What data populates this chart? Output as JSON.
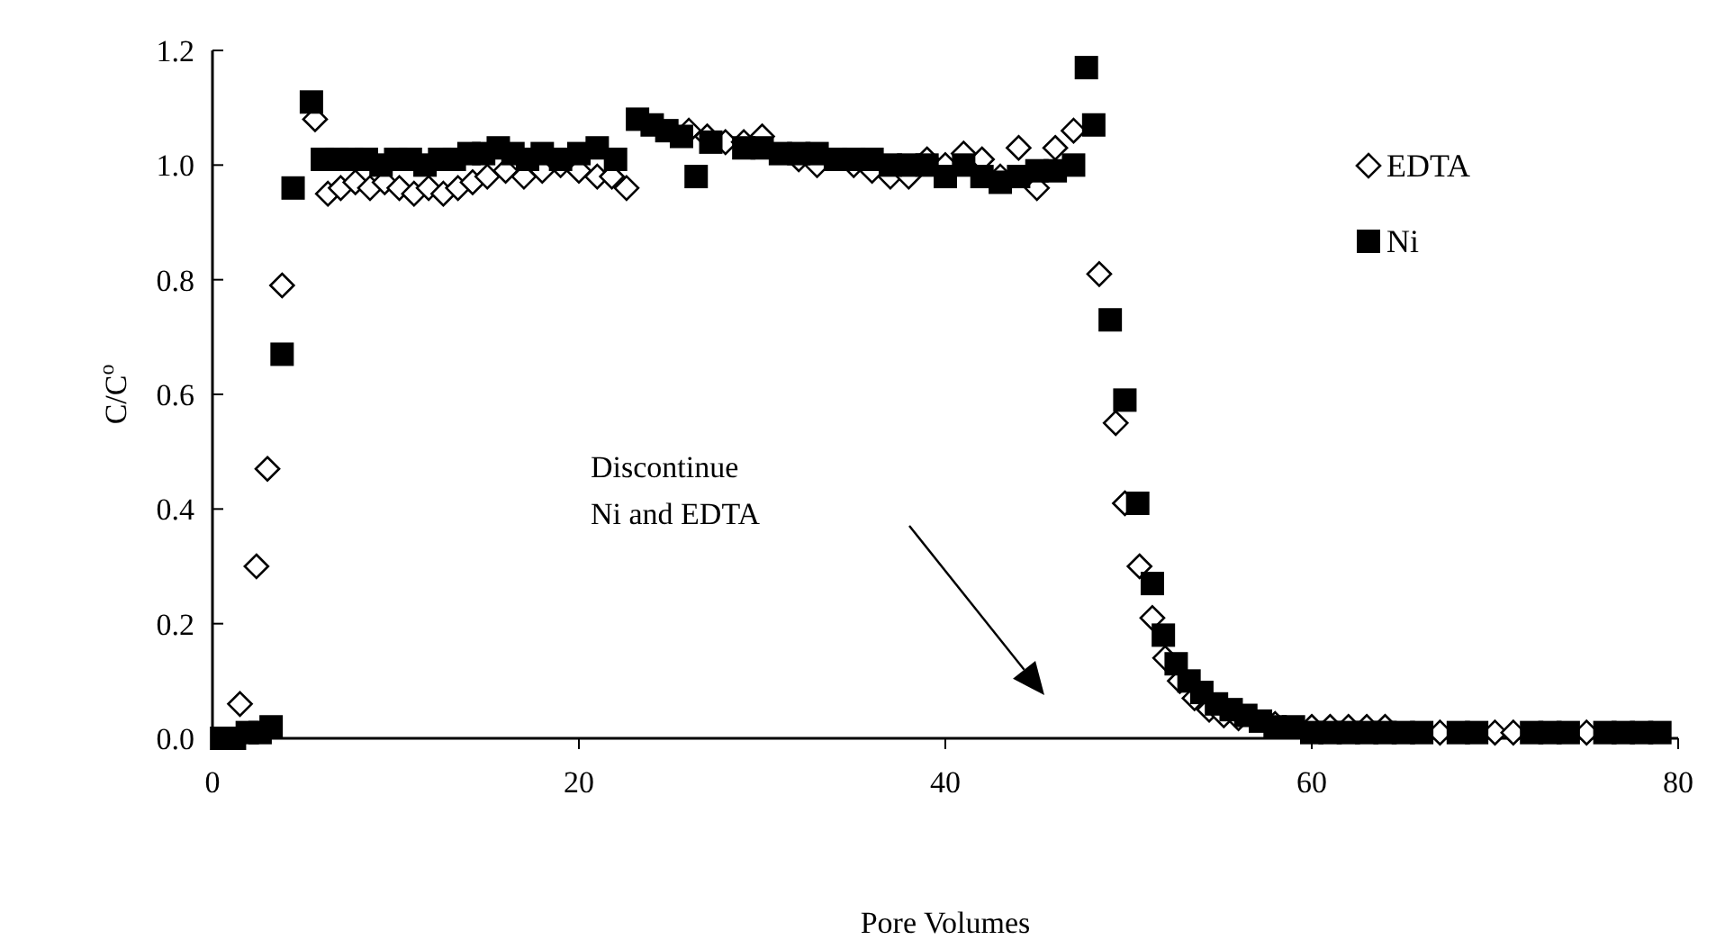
{
  "chart_data": {
    "type": "scatter",
    "xlabel": "Pore Volumes",
    "ylabel": "C/C$^{o}$",
    "xlim": [
      0,
      80
    ],
    "xticks": [
      0,
      20,
      40,
      60,
      80
    ],
    "ylim": [
      0,
      1.2
    ],
    "yticks": [
      {
        "value": 0,
        "label": "0.0"
      },
      {
        "value": 0.2,
        "label": "0.2"
      },
      {
        "value": 0.4,
        "label": "0.4"
      },
      {
        "value": 0.6,
        "label": "0.6"
      },
      {
        "value": 0.8,
        "label": "0.8"
      },
      {
        "value": 1,
        "label": "1.0"
      },
      {
        "value": 1.2,
        "label": "1.2"
      }
    ],
    "legend": "top right",
    "grid": false,
    "annotations": [
      "Discontinue\nNi and EDTA"
    ],
    "series": [
      {
        "name": "EDTA",
        "color": "#000000",
        "marker": "diamond",
        "x": [
          1.5,
          2.4,
          3.0,
          3.8,
          5.6,
          6.3,
          7.0,
          7.8,
          8.6,
          9.4,
          10.2,
          11.0,
          11.8,
          12.6,
          13.4,
          14.2,
          15.0,
          16.0,
          17.0,
          18.0,
          19.0,
          20.0,
          21.0,
          21.8,
          22.6,
          26.0,
          27.0,
          28.0,
          29.0,
          30.0,
          32.0,
          33.0,
          35.0,
          36.0,
          37.0,
          38.0,
          39.0,
          40.0,
          41.0,
          42.0,
          43.0,
          44.0,
          45.0,
          46.0,
          47.0,
          48.4,
          49.3,
          49.8,
          50.6,
          51.3,
          52.0,
          52.8,
          53.6,
          54.4,
          55.2,
          56,
          58,
          60,
          61,
          62,
          63,
          64,
          67,
          70,
          71,
          75
        ],
        "values": [
          0.06,
          0.3,
          0.47,
          0.79,
          1.08,
          0.95,
          0.96,
          0.97,
          0.96,
          0.97,
          0.96,
          0.95,
          0.96,
          0.95,
          0.96,
          0.97,
          0.98,
          0.99,
          0.98,
          0.99,
          1.0,
          0.99,
          0.98,
          0.98,
          0.96,
          1.06,
          1.05,
          1.04,
          1.04,
          1.05,
          1.01,
          1.0,
          1.0,
          0.99,
          0.98,
          0.98,
          1.01,
          1.0,
          1.02,
          1.01,
          0.98,
          1.03,
          0.96,
          1.03,
          1.06,
          0.81,
          0.55,
          0.41,
          0.3,
          0.21,
          0.14,
          0.1,
          0.07,
          0.05,
          0.04,
          0.035,
          0.025,
          0.02,
          0.02,
          0.02,
          0.02,
          0.02,
          0.01,
          0.01,
          0.01,
          0.01
        ]
      },
      {
        "name": "Ni",
        "color": "#000000",
        "marker": "square",
        "x": [
          0.5,
          1.2,
          1.9,
          2.6,
          3.2,
          3.8,
          4.4,
          5.4,
          6.0,
          6.8,
          7.6,
          8.4,
          9.2,
          10.0,
          10.8,
          11.6,
          12.4,
          13.2,
          14.0,
          14.8,
          15.6,
          16.4,
          17.2,
          18.0,
          19.0,
          20.0,
          21.0,
          22.0,
          23.2,
          24.0,
          24.8,
          25.6,
          26.4,
          27.2,
          29,
          30,
          31,
          32,
          33,
          34,
          35,
          36,
          37,
          38,
          39,
          40,
          41,
          42,
          43,
          44,
          45,
          46,
          47,
          47.7,
          48.1,
          49.0,
          49.8,
          50.5,
          51.3,
          51.9,
          52.6,
          53.3,
          54,
          54.8,
          55.6,
          56.4,
          57.2,
          58,
          59,
          60,
          61,
          62,
          63,
          64,
          65,
          66,
          68,
          69,
          72,
          73,
          74,
          76,
          77,
          78,
          79
        ],
        "values": [
          0.0,
          0.0,
          0.01,
          0.01,
          0.02,
          0.67,
          0.96,
          1.11,
          1.01,
          1.01,
          1.01,
          1.01,
          1.0,
          1.01,
          1.01,
          1.0,
          1.01,
          1.01,
          1.02,
          1.02,
          1.03,
          1.02,
          1.01,
          1.02,
          1.01,
          1.02,
          1.03,
          1.01,
          1.08,
          1.07,
          1.06,
          1.05,
          0.98,
          1.04,
          1.03,
          1.03,
          1.02,
          1.02,
          1.02,
          1.01,
          1.01,
          1.01,
          1.0,
          1.0,
          1.0,
          0.98,
          1.0,
          0.98,
          0.97,
          0.98,
          0.99,
          0.99,
          1.0,
          1.17,
          1.07,
          0.73,
          0.59,
          0.41,
          0.27,
          0.18,
          0.13,
          0.1,
          0.08,
          0.06,
          0.05,
          0.04,
          0.03,
          0.02,
          0.02,
          0.01,
          0.01,
          0.01,
          0.01,
          0.01,
          0.01,
          0.01,
          0.01,
          0.01,
          0.01,
          0.01,
          0.01,
          0.01,
          0.01,
          0.01,
          0.01
        ]
      }
    ]
  }
}
